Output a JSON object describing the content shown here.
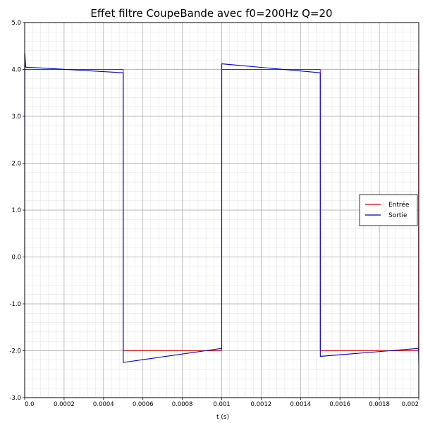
{
  "chart_data": {
    "type": "line",
    "title": "Effet filtre CoupeBande avec f0=200Hz Q=20",
    "xlabel": "t (s)",
    "ylabel": "",
    "xlim": [
      0,
      0.002
    ],
    "ylim": [
      -3.0,
      5.0
    ],
    "grid": true,
    "minor_grid": true,
    "legend_position": "right",
    "x_ticks": [
      "0.0",
      "0.0002",
      "0.0004",
      "0.0006",
      "0.0008",
      "0.001",
      "0.0012",
      "0.0014",
      "0.0016",
      "0.0018",
      "0.002"
    ],
    "y_ticks": [
      "-3.0",
      "-2.0",
      "-1.0",
      "0.0",
      "1.0",
      "2.0",
      "3.0",
      "4.0",
      "5.0"
    ],
    "colors": {
      "entree": "#dd0000",
      "sortie": "#0000cc"
    },
    "series": [
      {
        "name": "Entrée",
        "x": [
          0,
          1e-07,
          0.0005,
          0.0005001,
          0.001,
          0.0010001,
          0.0015,
          0.0015001,
          0.001999,
          0.0019991,
          0.002
        ],
        "y": [
          0,
          4.0,
          4.0,
          -2.0,
          -2.0,
          4.0,
          4.0,
          -2.0,
          -2.0,
          4.0,
          4.0
        ]
      },
      {
        "name": "Sortie",
        "x": [
          0,
          1e-06,
          5e-06,
          0.0005,
          0.0005001,
          0.0005002,
          0.001,
          0.0010001,
          0.0010002,
          0.0015,
          0.0015001,
          0.0015002,
          0.001999,
          0.0019991,
          0.002
        ],
        "y": [
          0,
          4.35,
          4.05,
          3.93,
          3.93,
          -2.25,
          -1.95,
          -1.95,
          4.12,
          3.93,
          3.93,
          -2.12,
          -1.95,
          -1.95,
          -2.3
        ]
      }
    ]
  }
}
